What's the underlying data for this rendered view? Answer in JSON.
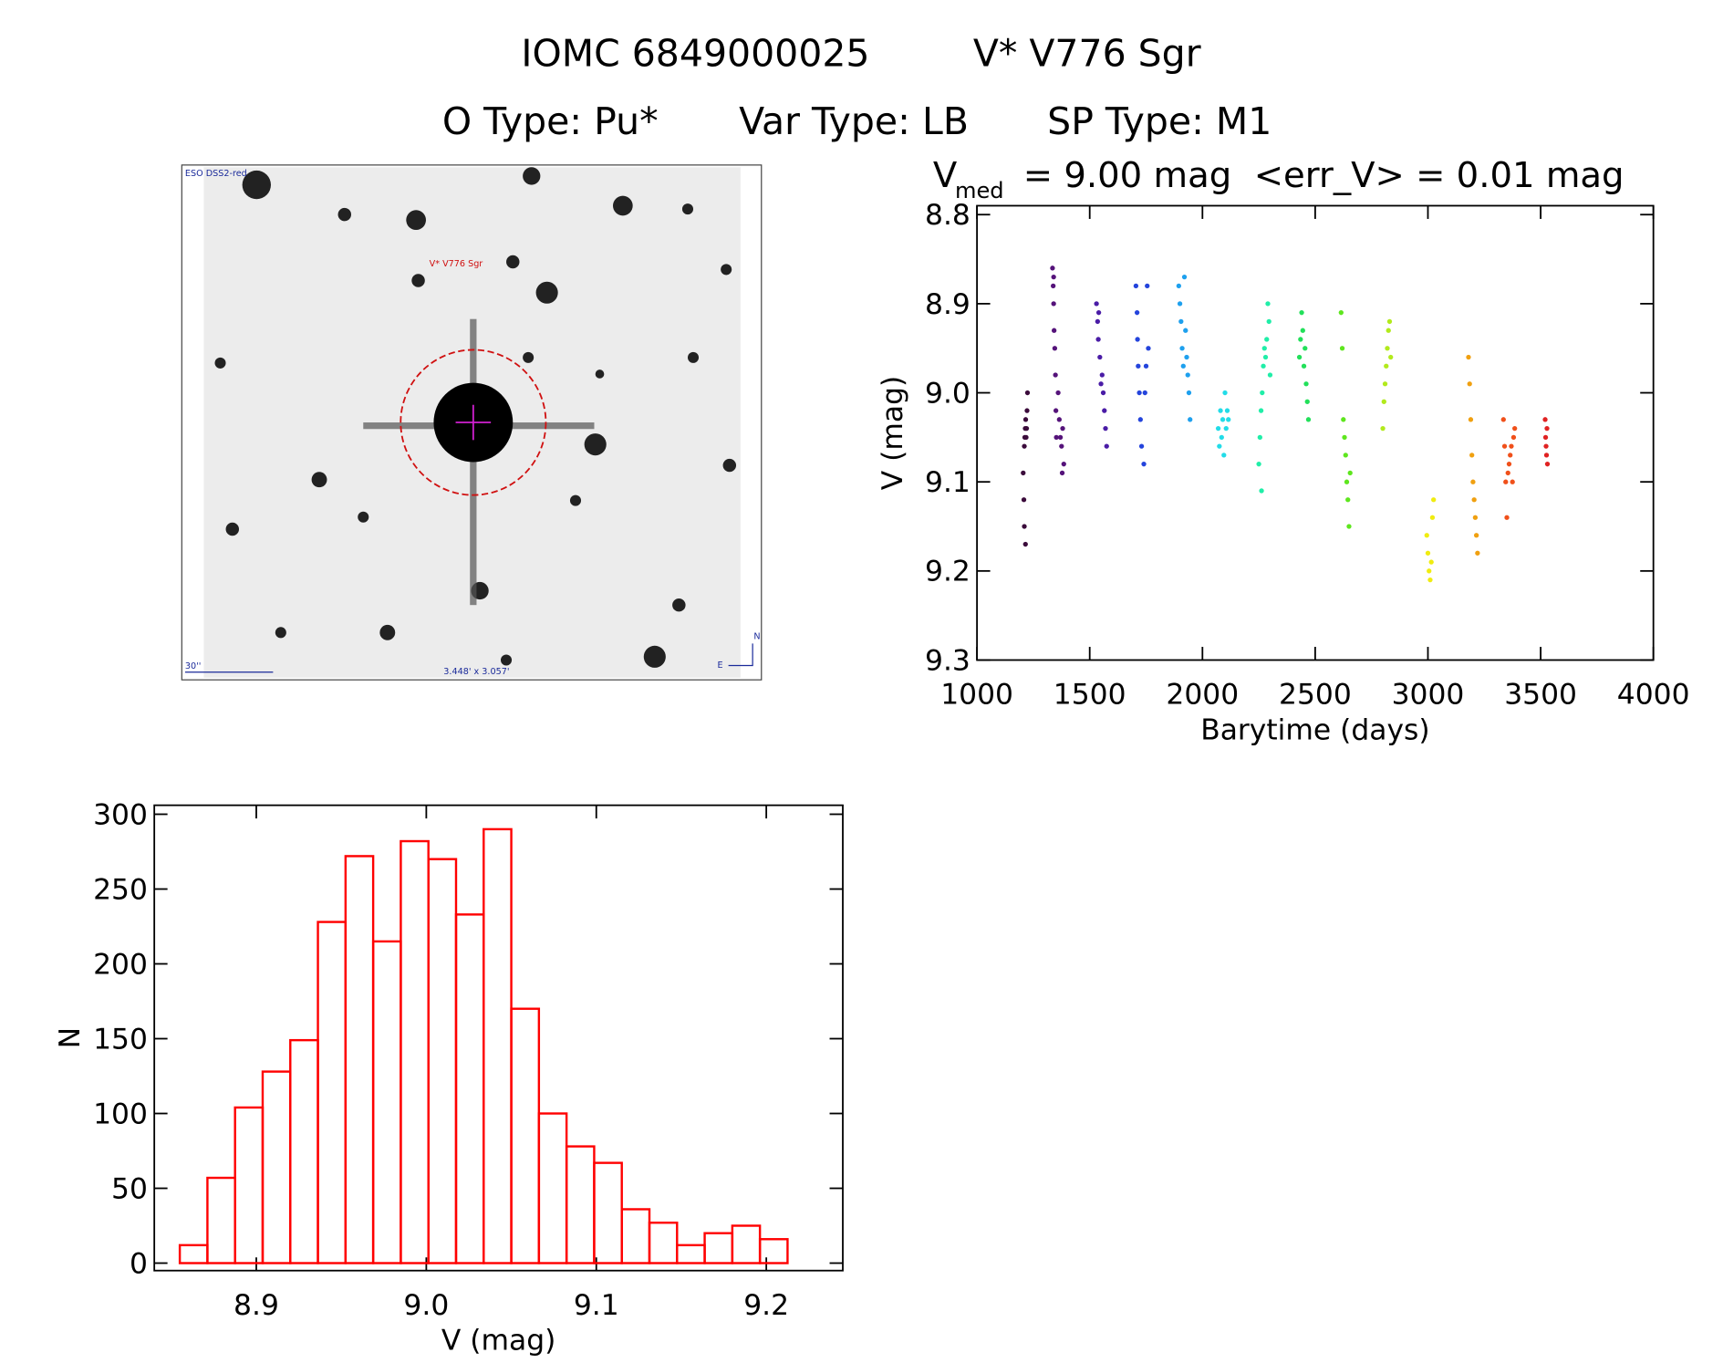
{
  "header": {
    "object_id": "IOMC 6849000025",
    "object_name": "V* V776 Sgr",
    "o_type": "O Type: Pu*",
    "var_type": "Var Type: LB",
    "sp_type": "SP Type: M1"
  },
  "finder": {
    "survey": "ESO DSS2-red",
    "target": "V* V776 Sgr",
    "scale": "30''",
    "field": "3.448' x 3.057'",
    "north": "N",
    "east": "E"
  },
  "chart_data": [
    {
      "type": "scatter",
      "title": "V",
      "title_subscript": "med",
      "title_rest": "= 9.00 mag  <err_V> = 0.01 mag",
      "xlabel": "Barytime (days)",
      "ylabel": "V (mag)",
      "xlim": [
        1000,
        4000
      ],
      "xticks": [
        1000,
        1500,
        2000,
        2500,
        3000,
        3500,
        4000
      ],
      "ylim": [
        8.79,
        9.3
      ],
      "yreversed": true,
      "yticks": [
        8.8,
        8.9,
        {
          "value": 9,
          "label": "9.0"
        },
        9.1,
        9.2,
        9.3
      ],
      "series": [
        {
          "color": "#3b0b3b",
          "x": [
            1205,
            1208,
            1210,
            1212,
            1214,
            1216,
            1218,
            1220,
            1222,
            1224,
            1210,
            1215
          ],
          "values": [
            9.09,
            9.12,
            9.06,
            9.05,
            9.04,
            9.03,
            9.05,
            9.04,
            9.02,
            9.0,
            9.15,
            9.17
          ]
        },
        {
          "color": "#55137a",
          "x": [
            1335,
            1338,
            1340,
            1342,
            1345,
            1348,
            1350,
            1352,
            1360,
            1365,
            1370,
            1375,
            1380,
            1385,
            1340,
            1378
          ],
          "values": [
            8.86,
            8.88,
            8.9,
            8.93,
            8.95,
            8.98,
            9.02,
            9.05,
            9.0,
            9.03,
            9.05,
            9.06,
            9.04,
            9.08,
            8.87,
            9.09
          ]
        },
        {
          "color": "#4a1ca6",
          "x": [
            1530,
            1535,
            1538,
            1540,
            1545,
            1550,
            1555,
            1560,
            1565,
            1570,
            1575
          ],
          "values": [
            8.9,
            8.92,
            8.94,
            8.91,
            8.96,
            8.99,
            8.98,
            9.0,
            9.02,
            9.04,
            9.06
          ]
        },
        {
          "color": "#2444dc",
          "x": [
            1705,
            1710,
            1712,
            1715,
            1720,
            1725,
            1730,
            1740,
            1745,
            1750,
            1755,
            1760
          ],
          "values": [
            8.88,
            8.91,
            8.94,
            8.97,
            9.0,
            9.03,
            9.06,
            9.08,
            9.0,
            8.97,
            8.88,
            8.95
          ]
        },
        {
          "color": "#1ea0ee",
          "x": [
            1895,
            1900,
            1905,
            1910,
            1915,
            1920,
            1925,
            1930,
            1935,
            1940,
            1945
          ],
          "values": [
            8.88,
            8.9,
            8.92,
            8.95,
            8.97,
            8.87,
            8.93,
            8.96,
            8.98,
            9.0,
            9.03
          ]
        },
        {
          "color": "#22dce8",
          "x": [
            2070,
            2075,
            2080,
            2085,
            2090,
            2095,
            2100,
            2105,
            2110,
            2115
          ],
          "values": [
            9.04,
            9.06,
            9.02,
            9.05,
            9.03,
            9.07,
            9.0,
            9.04,
            9.02,
            9.03
          ]
        },
        {
          "color": "#20eea8",
          "x": [
            2250,
            2255,
            2260,
            2265,
            2270,
            2275,
            2280,
            2285,
            2290,
            2295,
            2300,
            2262
          ],
          "values": [
            9.08,
            9.05,
            9.02,
            9.0,
            8.97,
            8.95,
            8.96,
            8.94,
            8.9,
            8.92,
            8.98,
            9.11
          ]
        },
        {
          "color": "#22e05a",
          "x": [
            2430,
            2435,
            2440,
            2445,
            2450,
            2455,
            2460,
            2465,
            2470
          ],
          "values": [
            8.96,
            8.94,
            8.91,
            8.93,
            8.97,
            8.95,
            8.99,
            9.01,
            9.03
          ]
        },
        {
          "color": "#5ee61e",
          "x": [
            2615,
            2620,
            2625,
            2630,
            2635,
            2640,
            2645,
            2650,
            2655
          ],
          "values": [
            8.91,
            8.95,
            9.03,
            9.05,
            9.07,
            9.1,
            9.12,
            9.15,
            9.09
          ]
        },
        {
          "color": "#b2ea1c",
          "x": [
            2800,
            2805,
            2810,
            2815,
            2820,
            2825,
            2830,
            2835
          ],
          "values": [
            9.04,
            9.01,
            8.99,
            8.97,
            8.95,
            8.93,
            8.92,
            8.96
          ]
        },
        {
          "color": "#f0ec10",
          "x": [
            2995,
            3000,
            3005,
            3010,
            3015,
            3020,
            3025
          ],
          "values": [
            9.16,
            9.18,
            9.2,
            9.21,
            9.19,
            9.14,
            9.12
          ]
        },
        {
          "color": "#f0a010",
          "x": [
            3180,
            3185,
            3190,
            3195,
            3200,
            3205,
            3210,
            3215,
            3220
          ],
          "values": [
            8.96,
            8.99,
            9.03,
            9.07,
            9.1,
            9.12,
            9.14,
            9.16,
            9.18
          ]
        },
        {
          "color": "#f0501a",
          "x": [
            3335,
            3340,
            3345,
            3350,
            3355,
            3360,
            3365,
            3370,
            3375,
            3380,
            3385
          ],
          "values": [
            9.03,
            9.06,
            9.1,
            9.14,
            9.09,
            9.08,
            9.07,
            9.06,
            9.1,
            9.05,
            9.04
          ]
        },
        {
          "color": "#e02222",
          "x": [
            3520,
            3522,
            3524,
            3526,
            3528,
            3530
          ],
          "values": [
            9.03,
            9.05,
            9.06,
            9.07,
            9.04,
            9.08
          ]
        }
      ]
    },
    {
      "type": "histogram",
      "xlabel": "V (mag)",
      "ylabel": "N",
      "color": "#ff0000",
      "bins": [
        8.855,
        8.87125,
        8.8875,
        8.90375,
        8.92,
        8.93625,
        8.9525,
        8.96875,
        8.985,
        9.00125,
        9.0175,
        9.03375,
        9.05,
        9.06625,
        9.0825,
        9.09875,
        9.115,
        9.13125,
        9.1475,
        9.16375,
        9.18,
        9.19625,
        9.2125
      ],
      "values": [
        12,
        57,
        104,
        128,
        149,
        228,
        272,
        215,
        282,
        270,
        233,
        290,
        170,
        100,
        78,
        67,
        36,
        27,
        12,
        20,
        25,
        16
      ],
      "xlim": [
        8.84,
        9.245
      ],
      "xticks": [
        8.9,
        {
          "value": 9,
          "label": "9.0"
        },
        9.1,
        9.2
      ],
      "ylim": [
        -5,
        306
      ],
      "yticks": [
        0,
        50,
        100,
        150,
        200,
        250,
        300
      ]
    }
  ]
}
